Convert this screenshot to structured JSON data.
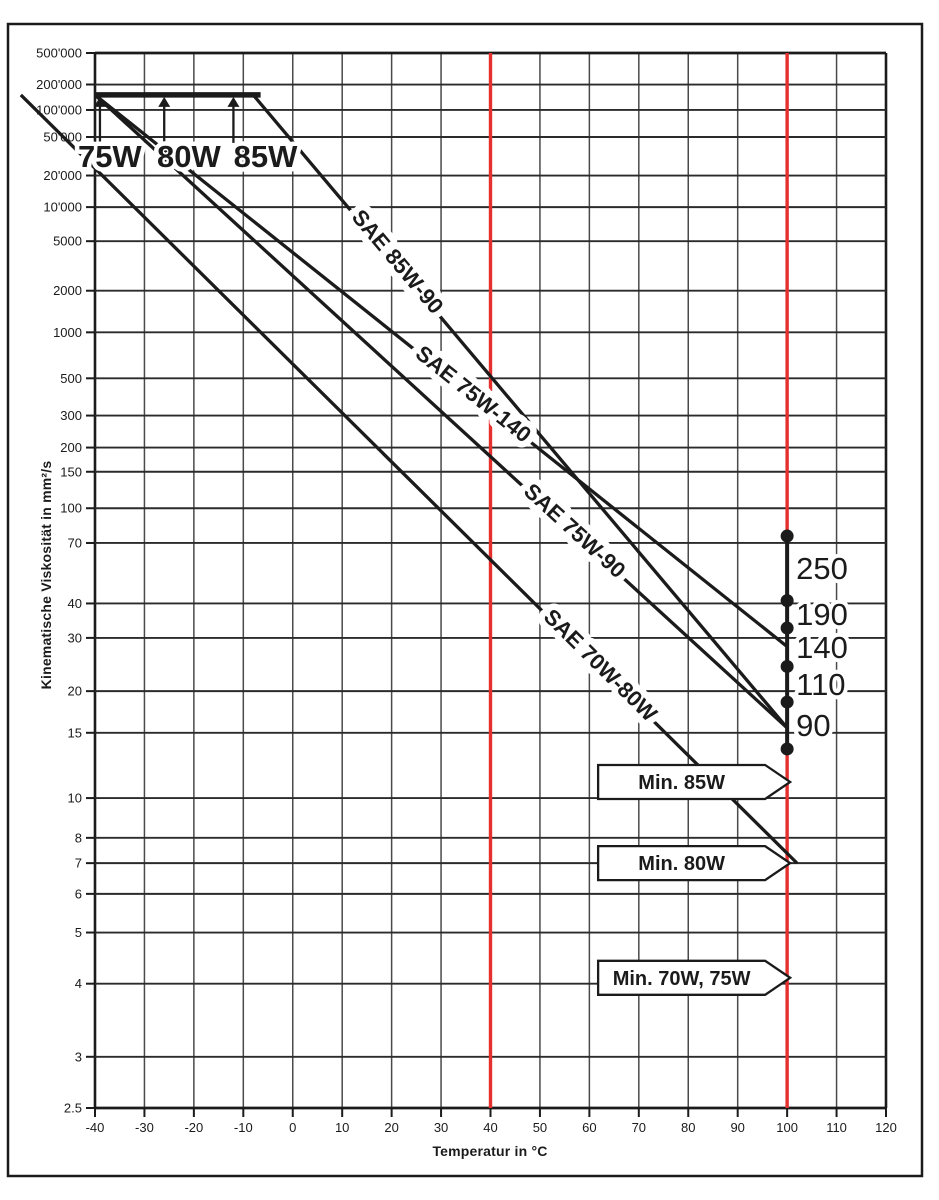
{
  "chart_data": {
    "type": "line",
    "title": "",
    "xlabel": "Temperatur in °C",
    "ylabel": "Kinematische Viskosität in mm²/s",
    "xlim": [
      -40,
      120
    ],
    "ylim": [
      2.5,
      500000
    ],
    "x_scale": "linear",
    "y_scale": "walther-double-log: y ~ log10(log10(v+0.7))",
    "grid": "on",
    "x_ticks": [
      -40,
      -30,
      -20,
      -10,
      0,
      10,
      20,
      30,
      40,
      50,
      60,
      70,
      80,
      90,
      100,
      110,
      120
    ],
    "y_ticks": [
      {
        "label": "500'000",
        "v": 500000
      },
      {
        "label": "200'000",
        "v": 200000
      },
      {
        "label": "100'000",
        "v": 100000
      },
      {
        "label": "50'000",
        "v": 50000
      },
      {
        "label": "20'000",
        "v": 20000
      },
      {
        "label": "10'000",
        "v": 10000
      },
      {
        "label": "5000",
        "v": 5000
      },
      {
        "label": "2000",
        "v": 2000
      },
      {
        "label": "1000",
        "v": 1000
      },
      {
        "label": "500",
        "v": 500
      },
      {
        "label": "300",
        "v": 300
      },
      {
        "label": "200",
        "v": 200
      },
      {
        "label": "150",
        "v": 150
      },
      {
        "label": "100",
        "v": 100
      },
      {
        "label": "70",
        "v": 70
      },
      {
        "label": "40",
        "v": 40
      },
      {
        "label": "30",
        "v": 30
      },
      {
        "label": "20",
        "v": 20
      },
      {
        "label": "15",
        "v": 15
      },
      {
        "label": "10",
        "v": 10
      },
      {
        "label": "8",
        "v": 8
      },
      {
        "label": "7",
        "v": 7
      },
      {
        "label": "6",
        "v": 6
      },
      {
        "label": "5",
        "v": 5
      },
      {
        "label": "4",
        "v": 4
      },
      {
        "label": "3",
        "v": 3
      },
      {
        "label": "2.5",
        "v": 2.5
      }
    ],
    "reference_lines_c": [
      40,
      100
    ],
    "series": [
      {
        "name": "SAE 85W-90",
        "points_c_mm2s": [
          [
            -8,
            150000
          ],
          [
            100,
            15.5
          ]
        ],
        "label_t": 0.26
      },
      {
        "name": "SAE 75W-140",
        "points_c_mm2s": [
          [
            -40,
            150000
          ],
          [
            100,
            28
          ]
        ],
        "label_t": 0.54
      },
      {
        "name": "SAE 75W-90",
        "points_c_mm2s": [
          [
            -40,
            150000
          ],
          [
            100,
            15.5
          ]
        ],
        "label_t": 0.686
      },
      {
        "name": "SAE 70W-80W",
        "points_c_mm2s": [
          [
            -55,
            150000
          ],
          [
            102,
            7
          ]
        ],
        "label_t": 0.74
      }
    ],
    "w_grade_limit_bar": {
      "viscosity": 150000,
      "from_c": -40,
      "to_c": -6.5,
      "arrows": [
        {
          "label": "75W",
          "temp_c": -39,
          "label_center_c": -37
        },
        {
          "label": "80W",
          "temp_c": -26,
          "label_center_c": -21
        },
        {
          "label": "85W",
          "temp_c": -12,
          "label_center_c": -5.5
        }
      ]
    },
    "grade_scale_at_100c": {
      "temp_c": 100,
      "dot_values_mm2s": [
        75,
        41,
        32.5,
        24,
        18.5,
        13.5
      ],
      "labels": [
        {
          "text": "250",
          "v": 55
        },
        {
          "text": "190",
          "v": 36.5
        },
        {
          "text": "140",
          "v": 27.9
        },
        {
          "text": "110",
          "v": 21.1
        },
        {
          "text": "90",
          "v": 15.8
        }
      ]
    },
    "min_markers": [
      {
        "label": "Min. 85W",
        "viscosity_mm2s": 11
      },
      {
        "label": "Min. 80W",
        "viscosity_mm2s": 7
      },
      {
        "label": "Min. 70W, 75W",
        "viscosity_mm2s": 4.1
      }
    ],
    "colors": {
      "ink": "#1b1b1b",
      "grid_horizontal": "#2b2b2b",
      "grid_vertical": "#4a4a4a",
      "reference_red": "#e5302e",
      "paper": "#ffffff"
    }
  }
}
